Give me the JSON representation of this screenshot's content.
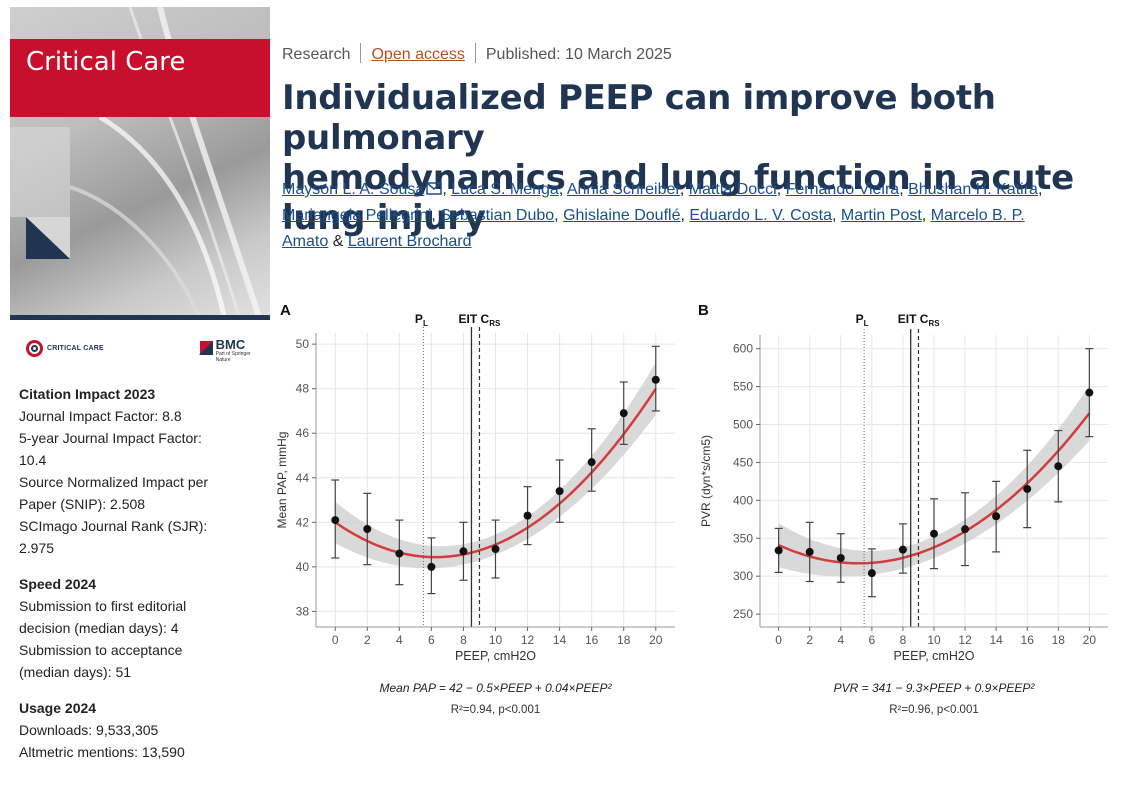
{
  "journal": {
    "cover_title": "Critical Care",
    "small_logo_text": "CRITICAL CARE",
    "publisher_logo": "BMC",
    "publisher_subtitle": "Part of Springer Nature"
  },
  "metrics": {
    "citation": {
      "heading": "Citation Impact 2023",
      "lines": [
        "Journal Impact Factor: 8.8",
        "5-year Journal Impact Factor:",
        "10.4",
        "Source Normalized Impact per",
        "Paper (SNIP): 2.508",
        "SCImago Journal Rank (SJR):",
        "2.975"
      ]
    },
    "speed": {
      "heading": "Speed 2024",
      "lines": [
        "Submission to first editorial",
        "decision (median days): 4",
        "Submission to acceptance",
        "(median days): 51"
      ]
    },
    "usage": {
      "heading": "Usage 2024",
      "lines": [
        "Downloads: 9,533,305",
        "Altmetric mentions: 13,590"
      ]
    }
  },
  "article": {
    "type": "Research",
    "access": "Open access",
    "published": "Published: 10 March 2025",
    "title_line1": "Individualized PEEP can improve both pulmonary",
    "title_line2": "hemodynamics and lung function in acute lung injury",
    "authors": [
      "Mayson L. A. Sousa",
      "Luca S. Menga",
      "Annia Schreiber",
      "Mattia Docci",
      "Fernando Vieira",
      "Bhushan H. Katira",
      "Mariangela Pellegrini",
      "Sebastian Dubo",
      "Ghislaine Douflé",
      "Eduardo L. V. Costa",
      "Martin Post",
      "Marcelo B. P.",
      "Amato",
      "Laurent Brochard"
    ],
    "and_word": "&"
  },
  "chart_data": [
    {
      "type": "scatter",
      "panel": "A",
      "xlabel": "PEEP, cmH2O",
      "ylabel": "Mean PAP, mmHg",
      "x": [
        0,
        2,
        4,
        6,
        8,
        10,
        12,
        14,
        16,
        18,
        20
      ],
      "y": [
        42.1,
        41.7,
        40.6,
        40.0,
        40.7,
        40.8,
        42.3,
        43.4,
        44.7,
        46.9,
        48.4
      ],
      "err_low": [
        40.4,
        40.1,
        39.2,
        38.8,
        39.4,
        39.5,
        41.0,
        42.0,
        43.4,
        45.5,
        47.0
      ],
      "err_high": [
        43.9,
        43.3,
        42.1,
        41.3,
        42.0,
        42.1,
        43.6,
        44.8,
        46.2,
        48.3,
        49.9
      ],
      "xticks": [
        0,
        2,
        4,
        6,
        8,
        10,
        12,
        14,
        16,
        18,
        20
      ],
      "yticks": [
        38,
        40,
        42,
        44,
        46,
        48,
        50
      ],
      "xlim": [
        -1.2,
        21.2
      ],
      "ylim": [
        37.3,
        50.5
      ],
      "fit": {
        "a": 42,
        "b": -0.5,
        "c": 0.04
      },
      "pl_x": 5.5,
      "eit_x": 8.5,
      "crs_x": 9.0,
      "marker_pl": "P",
      "marker_pl_sub": "L",
      "marker_eit": "EIT C",
      "marker_eit_sub": "RS",
      "equation": "Mean PAP = 42 − 0.5×PEEP + 0.04×PEEP²",
      "stats": "R²=0.94, p<0.001"
    },
    {
      "type": "scatter",
      "panel": "B",
      "xlabel": "PEEP, cmH2O",
      "ylabel": "PVR (dyn*s/cm5)",
      "x": [
        0,
        2,
        4,
        6,
        8,
        10,
        12,
        14,
        16,
        18,
        20
      ],
      "y": [
        334,
        332,
        324,
        304,
        335,
        356,
        362,
        379,
        415,
        445,
        542
      ],
      "err_low": [
        305,
        293,
        292,
        273,
        304,
        310,
        314,
        332,
        364,
        398,
        484
      ],
      "err_high": [
        363,
        371,
        356,
        336,
        369,
        402,
        410,
        425,
        466,
        492,
        600
      ],
      "xticks": [
        0,
        2,
        4,
        6,
        8,
        10,
        12,
        14,
        16,
        18,
        20
      ],
      "yticks": [
        250,
        300,
        350,
        400,
        450,
        500,
        550,
        600
      ],
      "xlim": [
        -1.2,
        21.2
      ],
      "ylim": [
        233,
        618
      ],
      "fit": {
        "a": 341,
        "b": -9.3,
        "c": 0.9
      },
      "pl_x": 5.5,
      "eit_x": 8.5,
      "crs_x": 9.0,
      "marker_pl": "P",
      "marker_pl_sub": "L",
      "marker_eit": "EIT C",
      "marker_eit_sub": "RS",
      "equation": "PVR = 341 − 9.3×PEEP + 0.9×PEEP²",
      "stats": "R²=0.96, p<0.001"
    }
  ]
}
